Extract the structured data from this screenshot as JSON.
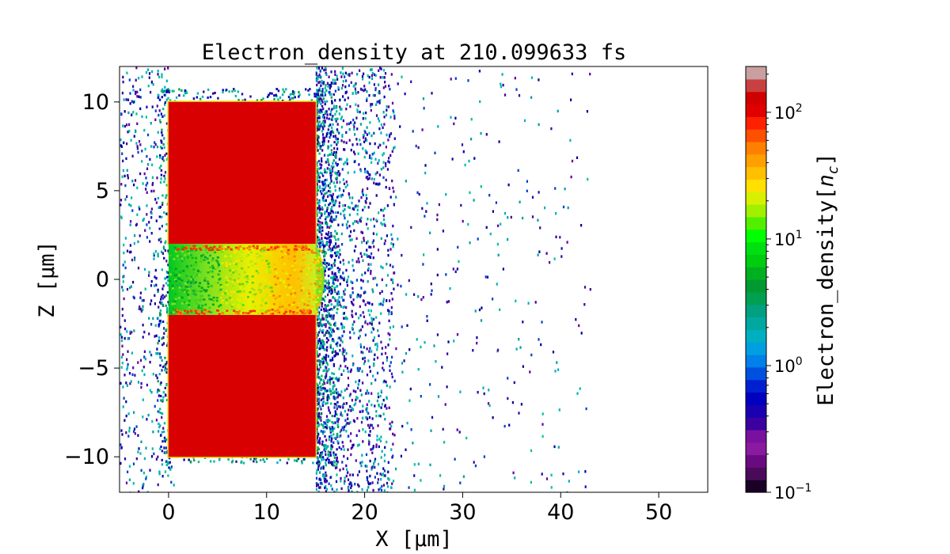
{
  "chart_data": {
    "type": "heatmap",
    "title": "Electron_density at 210.099633 fs",
    "xlabel": "X [μm]",
    "ylabel": "Z [μm]",
    "xlim": [
      -5,
      55
    ],
    "ylim": [
      -12,
      12
    ],
    "x_ticks": [
      {
        "v": 0,
        "label": "0"
      },
      {
        "v": 10,
        "label": "10"
      },
      {
        "v": 20,
        "label": "20"
      },
      {
        "v": 30,
        "label": "30"
      },
      {
        "v": 40,
        "label": "40"
      },
      {
        "v": 50,
        "label": "50"
      }
    ],
    "y_ticks": [
      {
        "v": 10,
        "label": "10"
      },
      {
        "v": 5,
        "label": "5"
      },
      {
        "v": 0,
        "label": "0"
      },
      {
        "v": -5,
        "label": "−5"
      },
      {
        "v": -10,
        "label": "−10"
      }
    ],
    "colorbar": {
      "label": "Electron_density[n_c]",
      "scale": "log",
      "range": [
        0.1,
        230
      ],
      "ticks": [
        {
          "v": 0.1,
          "base": "10",
          "exp": "−1"
        },
        {
          "v": 1,
          "base": "10",
          "exp": "0"
        },
        {
          "v": 10,
          "base": "10",
          "exp": "1"
        },
        {
          "v": 100,
          "base": "10",
          "exp": "2"
        }
      ],
      "bands": [
        "#1a0026",
        "#4a0a5a",
        "#6a0a80",
        "#8a1aa0",
        "#7a10a0",
        "#3a00a0",
        "#1a00b0",
        "#0000c0",
        "#0020d0",
        "#0050e0",
        "#0080e8",
        "#00a0e0",
        "#00b0c0",
        "#00a8a0",
        "#00a080",
        "#00a050",
        "#009a30",
        "#00b020",
        "#00cc10",
        "#00e010",
        "#00ff00",
        "#50f000",
        "#a0f000",
        "#d8f000",
        "#ffe000",
        "#ffc000",
        "#ffa000",
        "#ff8000",
        "#ff5000",
        "#ff2000",
        "#e00000",
        "#d00000",
        "#c84040",
        "#c8a0a0"
      ]
    },
    "regions": [
      {
        "name": "upper target",
        "x": [
          0,
          15
        ],
        "z": [
          2,
          10
        ],
        "density": "~100 n_c"
      },
      {
        "name": "lower target",
        "x": [
          0,
          15
        ],
        "z": [
          -10,
          -2
        ],
        "density": "~100 n_c"
      },
      {
        "name": "channel plasma",
        "x": [
          0,
          16
        ],
        "z": [
          -2,
          2
        ],
        "density": "~1-50 n_c"
      },
      {
        "name": "expanding electrons",
        "x": [
          -5,
          42
        ],
        "z": [
          -12,
          12
        ],
        "density": "~0.1-1 n_c"
      }
    ],
    "grid": false,
    "colors": {
      "target": "#d80000",
      "edge": "#e8d800",
      "channel_high": "#ffd000",
      "channel_mid": "#b8f000",
      "channel_low": "#00cc10",
      "sparse_dark": "#0000a0",
      "sparse_cyan": "#00b0c0"
    }
  }
}
